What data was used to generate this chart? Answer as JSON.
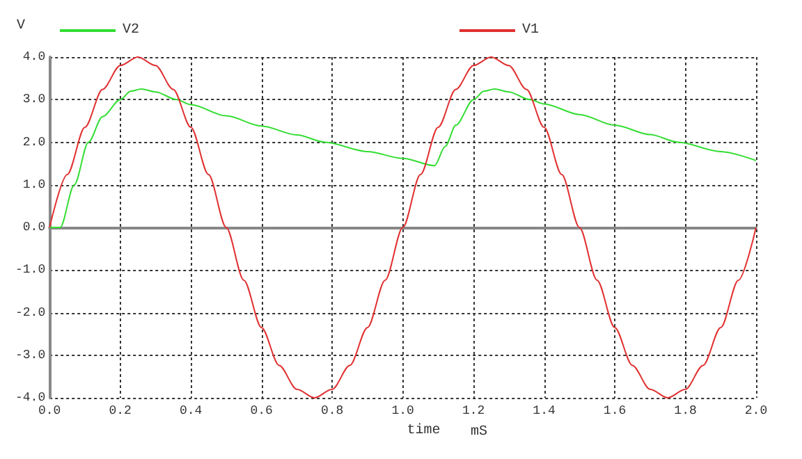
{
  "chart_data": {
    "type": "line",
    "ylabel": "V",
    "xlabel": "time",
    "annotations": [
      "mS"
    ],
    "xlim": [
      0,
      2
    ],
    "xticks": [
      {
        "value": 0,
        "label": "0.0"
      },
      {
        "value": 0.2,
        "label": "0.2"
      },
      {
        "value": 0.4,
        "label": "0.4"
      },
      {
        "value": 0.6,
        "label": "0.6"
      },
      {
        "value": 0.8,
        "label": "0.8"
      },
      {
        "value": 1,
        "label": "1.0"
      },
      {
        "value": 1.2,
        "label": "1.2"
      },
      {
        "value": 1.4,
        "label": "1.4"
      },
      {
        "value": 1.6,
        "label": "1.6"
      },
      {
        "value": 1.8,
        "label": "1.8"
      },
      {
        "value": 2,
        "label": "2.0"
      }
    ],
    "ylim": [
      -4,
      4
    ],
    "yticks": [
      {
        "value": -4,
        "label": "-4.0"
      },
      {
        "value": -3,
        "label": "-3.0"
      },
      {
        "value": -2,
        "label": "-2.0"
      },
      {
        "value": -1,
        "label": "-1.0"
      },
      {
        "value": 0,
        "label": "0.0"
      },
      {
        "value": 1,
        "label": "1.0"
      },
      {
        "value": 2,
        "label": "2.0"
      },
      {
        "value": 3,
        "label": "3.0"
      },
      {
        "value": 4,
        "label": "4.0"
      }
    ],
    "grid": true,
    "legend": "top",
    "marker": "none",
    "line_style": "solid",
    "series": [
      {
        "name": "V2",
        "color": "#33dd33",
        "x": [
          0,
          0.03,
          0.07,
          0.11,
          0.15,
          0.2,
          0.23,
          0.26,
          0.3,
          0.36,
          0.4,
          0.5,
          0.6,
          0.7,
          0.78,
          0.9,
          1.0,
          1.09,
          1.12,
          1.15,
          1.2,
          1.23,
          1.26,
          1.3,
          1.36,
          1.4,
          1.5,
          1.6,
          1.7,
          1.78,
          1.9,
          2.0
        ],
        "values": [
          0,
          0,
          1.0,
          2.0,
          2.6,
          3.0,
          3.2,
          3.25,
          3.18,
          3.0,
          2.88,
          2.62,
          2.38,
          2.17,
          2.0,
          1.78,
          1.62,
          1.45,
          1.9,
          2.4,
          3.0,
          3.2,
          3.25,
          3.18,
          3.0,
          2.9,
          2.65,
          2.4,
          2.18,
          2.0,
          1.78,
          1.57
        ]
      },
      {
        "name": "V1",
        "color": "#e03030",
        "x": [
          0,
          0.05,
          0.1,
          0.15,
          0.2,
          0.25,
          0.3,
          0.35,
          0.4,
          0.45,
          0.5,
          0.55,
          0.6,
          0.65,
          0.7,
          0.75,
          0.8,
          0.85,
          0.9,
          0.95,
          1.0,
          1.05,
          1.1,
          1.15,
          1.2,
          1.25,
          1.3,
          1.35,
          1.4,
          1.45,
          1.5,
          1.55,
          1.6,
          1.65,
          1.7,
          1.75,
          1.8,
          1.85,
          1.9,
          1.95,
          2.0
        ],
        "values": [
          0,
          1.24,
          2.35,
          3.24,
          3.8,
          4.0,
          3.8,
          3.24,
          2.35,
          1.24,
          0,
          -1.24,
          -2.35,
          -3.24,
          -3.8,
          -4.0,
          -3.8,
          -3.24,
          -2.35,
          -1.24,
          0,
          1.24,
          2.35,
          3.24,
          3.8,
          4.0,
          3.8,
          3.24,
          2.35,
          1.24,
          0,
          -1.24,
          -2.35,
          -3.24,
          -3.8,
          -4.0,
          -3.8,
          -3.24,
          -2.35,
          -1.24,
          0
        ]
      }
    ]
  }
}
